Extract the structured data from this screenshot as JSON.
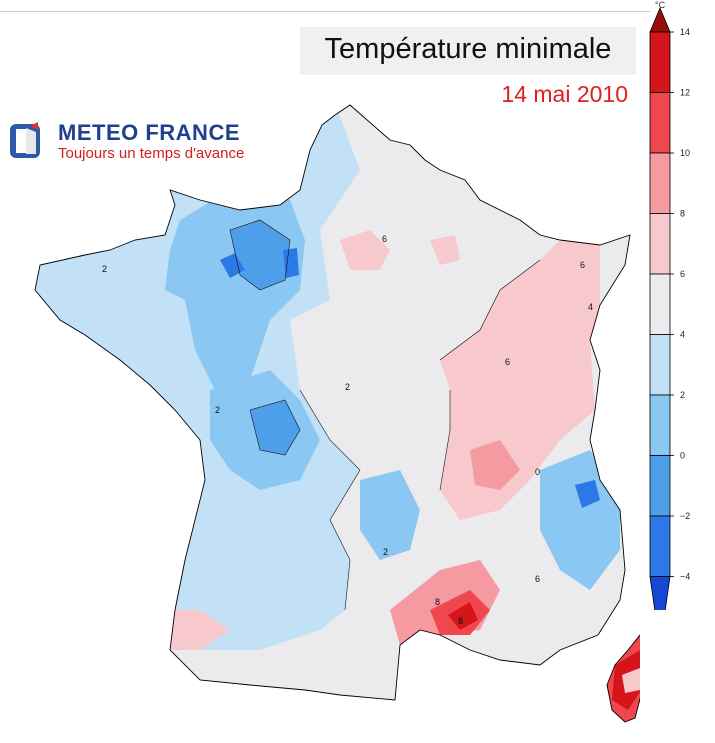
{
  "title": "Température minimale",
  "date": "14 mai 2010",
  "logo": {
    "name": "METEO FRANCE",
    "tagline": "Toujours un temps d'avance"
  },
  "colorbar": {
    "unit": "°C",
    "ticks": [
      "14",
      "12",
      "10",
      "8",
      "6",
      "4",
      "2",
      "0",
      "−2",
      "−4"
    ],
    "colors": [
      "#9b0d0d",
      "#d4151c",
      "#f0474f",
      "#f59aa0",
      "#f7c8cc",
      "#ebebed",
      "#c2e1f7",
      "#8ac7f2",
      "#4e9fe9",
      "#2b78e6",
      "#1447d6"
    ]
  },
  "map": {
    "contour_labels": [
      "6",
      "6",
      "6",
      "6",
      "4",
      "2",
      "2",
      "2",
      "2",
      "0",
      "8",
      "8"
    ]
  }
}
